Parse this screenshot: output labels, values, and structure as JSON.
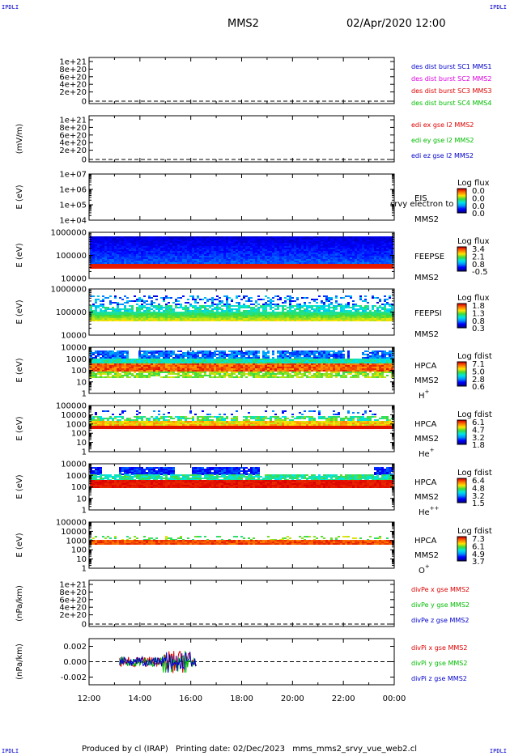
{
  "header": {
    "corner_tl": "IPDLI",
    "corner_tr": "IPDLI",
    "corner_bl": "IPDLI",
    "corner_br": "IPDLI",
    "spacecraft": "MMS2",
    "datetime": "02/Apr/2020 12:00"
  },
  "footer": {
    "produced_by": "Produced by cl (IRAP)",
    "printing_date": "Printing date: 02/Dec/2023",
    "script_name": "mms_mms2_srvy_vue_web2.cl"
  },
  "colors": {
    "red": "#dd0000",
    "green": "#00bb00",
    "blue": "#0000cc",
    "magenta": "#dd00dd"
  },
  "chart_data": [
    {
      "type": "line",
      "id": "p1",
      "ylabel": "",
      "yticks": [
        "1e+21",
        "8e+20",
        "6e+20",
        "4e+20",
        "2e+20",
        "0"
      ],
      "legend": [
        {
          "name": "des dist burst SC1 MMS1",
          "color": "#0000cc"
        },
        {
          "name": "des dist burst SC2 MMS2",
          "color": "#dd00dd"
        },
        {
          "name": "des dist burst SC3 MMS3",
          "color": "#dd0000"
        },
        {
          "name": "des dist burst SC4 MMS4",
          "color": "#00bb00"
        }
      ]
    },
    {
      "type": "line",
      "id": "p2",
      "ylabel": "(mV/m)",
      "yticks": [
        "1e+21",
        "8e+20",
        "6e+20",
        "4e+20",
        "2e+20",
        "0"
      ],
      "legend": [
        {
          "name": "edi ex gse l2 MMS2",
          "color": "#dd0000"
        },
        {
          "name": "edi ey gse l2 MMS2",
          "color": "#00bb00"
        },
        {
          "name": "edi ez gse l2 MMS2",
          "color": "#0000cc"
        }
      ]
    },
    {
      "type": "heatmap",
      "id": "p3",
      "ylabel": "E (eV)",
      "yticks": [
        "1e+07",
        "1e+06",
        "1e+05",
        "1e+04"
      ],
      "labels": [
        "EIS",
        "MMS2"
      ],
      "overlay": "srvy electron to",
      "colorbar": {
        "title": "Log flux",
        "ticks": [
          "0.0",
          "0.0",
          "0.0",
          "0.0"
        ]
      }
    },
    {
      "type": "heatmap",
      "id": "p4",
      "ylabel": "E (eV)",
      "yticks": [
        "1000000",
        "100000",
        "10000"
      ],
      "labels": [
        "FEEPSE",
        "MMS2"
      ],
      "colorbar": {
        "title": "Log flux",
        "ticks": [
          "3.4",
          "2.1",
          "0.8",
          "-0.5"
        ]
      }
    },
    {
      "type": "heatmap",
      "id": "p5",
      "ylabel": "E (eV)",
      "yticks": [
        "1000000",
        "100000",
        "10000"
      ],
      "labels": [
        "FEEPSI",
        "MMS2"
      ],
      "colorbar": {
        "title": "Log flux",
        "ticks": [
          "1.8",
          "1.3",
          "0.8",
          "0.3"
        ]
      }
    },
    {
      "type": "heatmap",
      "id": "p6",
      "ylabel": "E (eV)",
      "yticks": [
        "10000",
        "1000",
        "100",
        "10",
        "1"
      ],
      "labels": [
        "HPCA",
        "MMS2"
      ],
      "species": {
        "base": "H",
        "sup": "+"
      },
      "colorbar": {
        "title": "Log fdist",
        "ticks": [
          "7.1",
          "5.0",
          "2.8",
          "0.6"
        ]
      }
    },
    {
      "type": "heatmap",
      "id": "p7",
      "ylabel": "E (eV)",
      "yticks": [
        "100000",
        "10000",
        "1000",
        "100",
        "10",
        "1"
      ],
      "labels": [
        "HPCA",
        "MMS2"
      ],
      "species": {
        "base": "He",
        "sup": "+"
      },
      "colorbar": {
        "title": "Log fdist",
        "ticks": [
          "6.1",
          "4.7",
          "3.2",
          "1.8"
        ]
      }
    },
    {
      "type": "heatmap",
      "id": "p8",
      "ylabel": "E (eV)",
      "yticks": [
        "10000",
        "1000",
        "100",
        "10",
        "1"
      ],
      "labels": [
        "HPCA",
        "MMS2"
      ],
      "species": {
        "base": "He",
        "sup": "++"
      },
      "colorbar": {
        "title": "Log fdist",
        "ticks": [
          "6.4",
          "4.8",
          "3.2",
          "1.5"
        ]
      }
    },
    {
      "type": "heatmap",
      "id": "p9",
      "ylabel": "E (eV)",
      "yticks": [
        "100000",
        "10000",
        "1000",
        "100",
        "10",
        "1"
      ],
      "labels": [
        "HPCA",
        "MMS2"
      ],
      "species": {
        "base": "O",
        "sup": "+"
      },
      "colorbar": {
        "title": "Log fdist",
        "ticks": [
          "7.3",
          "6.1",
          "4.9",
          "3.7"
        ]
      }
    },
    {
      "type": "line",
      "id": "p10",
      "ylabel": "(nPa/km)",
      "yticks": [
        "1e+21",
        "8e+20",
        "6e+20",
        "4e+20",
        "2e+20",
        "0"
      ],
      "legend": [
        {
          "name": "divPe x gse MMS2",
          "color": "#dd0000"
        },
        {
          "name": "divPe y gse MMS2",
          "color": "#00bb00"
        },
        {
          "name": "divPe z gse MMS2",
          "color": "#0000cc"
        }
      ]
    },
    {
      "type": "line",
      "id": "p11",
      "ylabel": "(nPa/km)",
      "yticks": [
        "0.002",
        "0.000",
        "-0.002"
      ],
      "ylim": [
        -0.003,
        0.003
      ],
      "data_range_hours": [
        13.2,
        16.25
      ],
      "legend": [
        {
          "name": "divPi x gse MMS2",
          "color": "#dd0000"
        },
        {
          "name": "divPi y gse MMS2",
          "color": "#00bb00"
        },
        {
          "name": "divPi z gse MMS2",
          "color": "#0000cc"
        }
      ]
    }
  ],
  "x_axis": {
    "ticks": [
      "12:00",
      "14:00",
      "16:00",
      "18:00",
      "20:00",
      "22:00",
      "00:00"
    ],
    "range_hours": [
      12,
      24
    ]
  }
}
